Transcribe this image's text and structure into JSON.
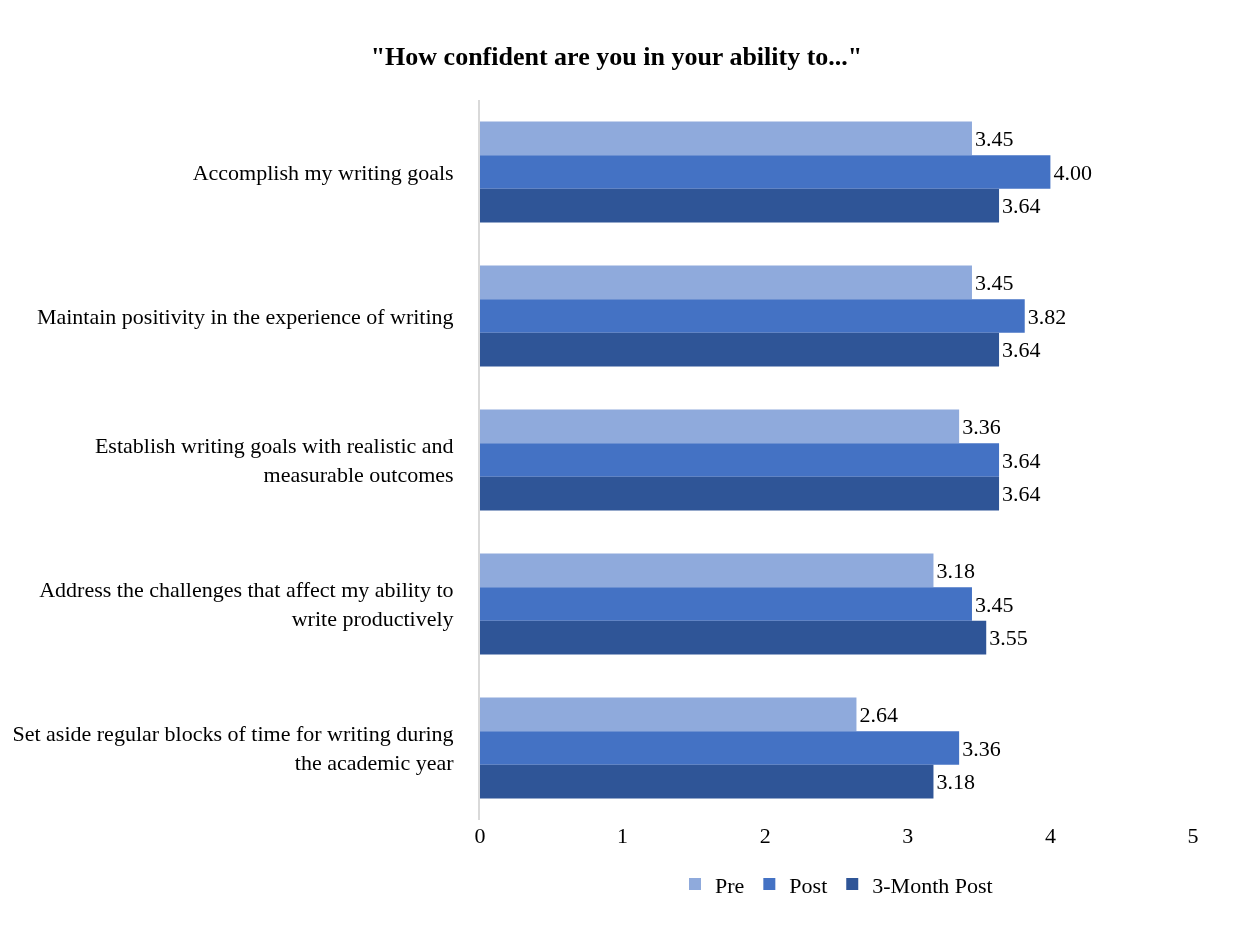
{
  "chart_data": {
    "type": "bar",
    "orientation": "horizontal",
    "title": "\"How confident are you in your ability to...\"",
    "categories": [
      "Accomplish my writing goals",
      "Maintain positivity in the experience of writing",
      "Establish writing goals with realistic and measurable outcomes",
      "Address the challenges that affect my ability to write productively",
      "Set aside regular blocks of time for writing during the academic year"
    ],
    "series": [
      {
        "name": "Pre",
        "color": "#8faadc",
        "values": [
          3.45,
          3.45,
          3.36,
          3.18,
          2.64
        ],
        "value_labels": [
          "3.45",
          "3.45",
          "3.36",
          "3.18",
          "2.64"
        ]
      },
      {
        "name": "Post",
        "color": "#4472c4",
        "values": [
          4.0,
          3.82,
          3.64,
          3.45,
          3.36
        ],
        "value_labels": [
          "4.00",
          "3.82",
          "3.64",
          "3.45",
          "3.36"
        ]
      },
      {
        "name": "3-Month Post",
        "color": "#2f5597",
        "values": [
          3.64,
          3.64,
          3.64,
          3.55,
          3.18
        ],
        "value_labels": [
          "3.64",
          "3.64",
          "3.64",
          "3.55",
          "3.18"
        ]
      }
    ],
    "xlim": [
      0,
      5
    ],
    "xticks": [
      0,
      1,
      2,
      3,
      4,
      5
    ],
    "grid": false,
    "legend": "bottom"
  }
}
